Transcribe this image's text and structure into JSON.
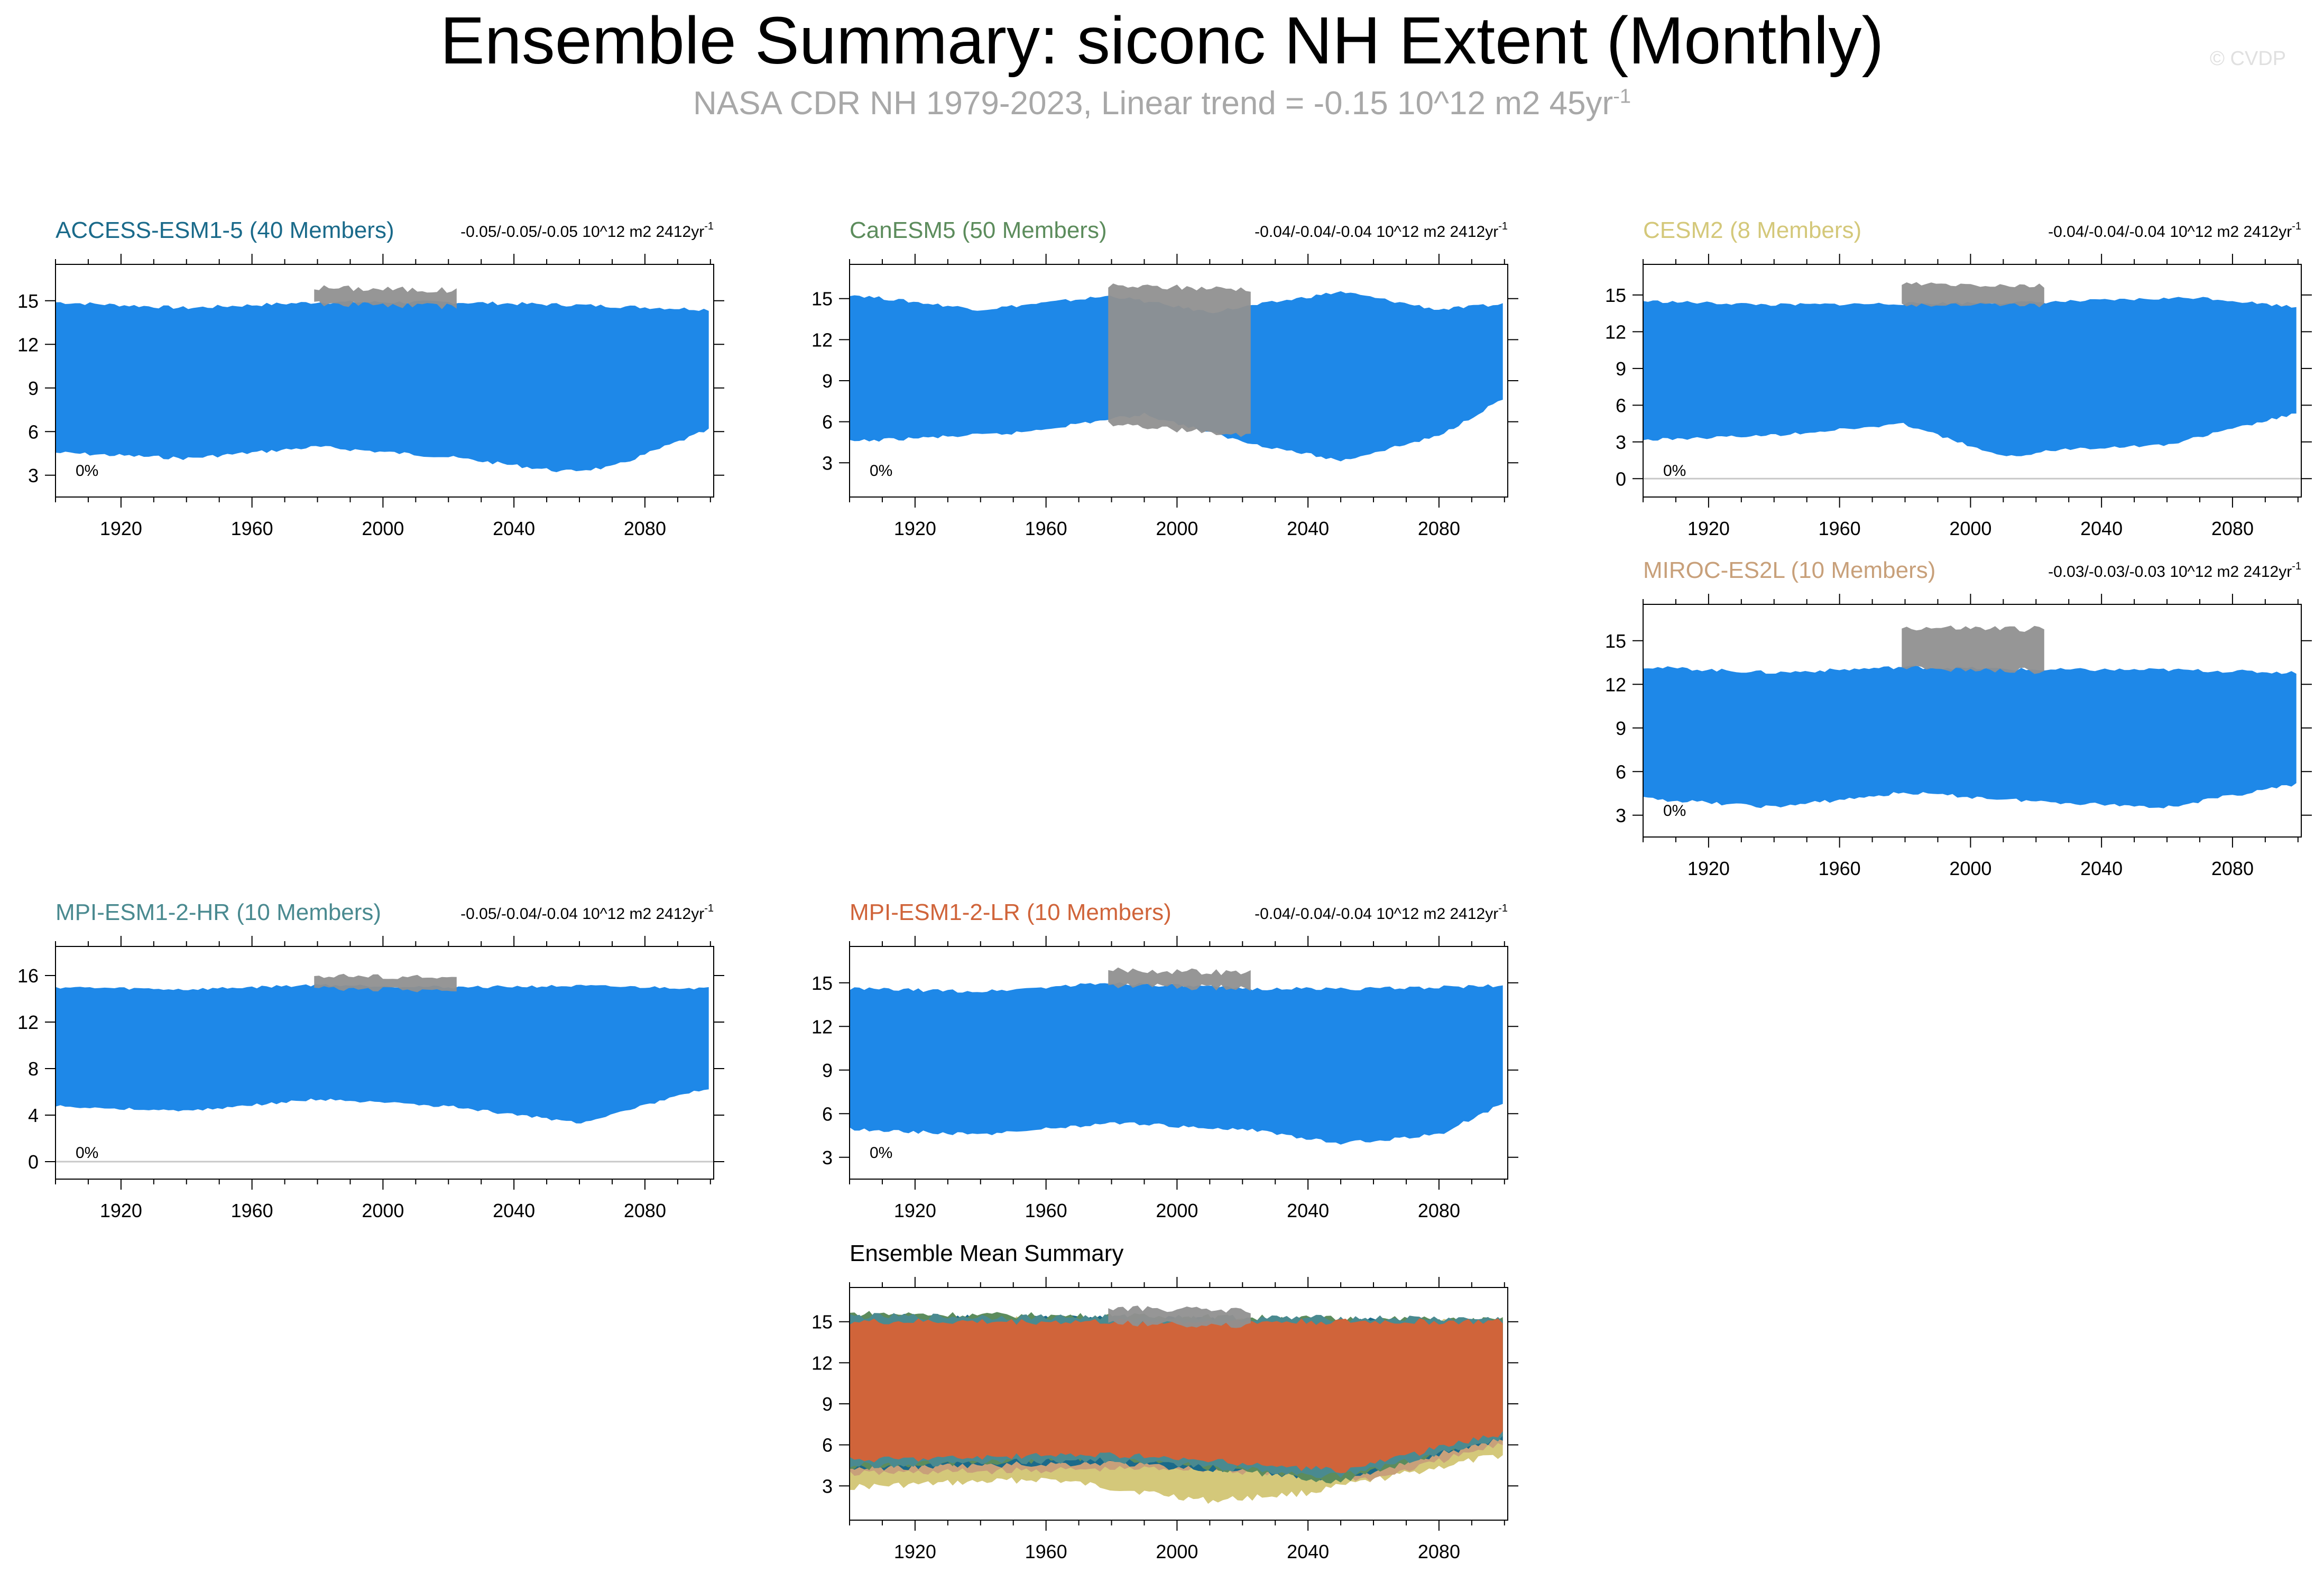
{
  "header": {
    "title": "Ensemble Summary: siconc NH Extent (Monthly)",
    "subtitle_main": "NASA CDR NH 1979-2023, Linear trend = -0.15 10^12 m2 45yr",
    "subtitle_sup": "-1",
    "watermark": "© CVDP"
  },
  "colors": {
    "model_band": "#1e88e8",
    "observations": "#909090",
    "ACCESS-ESM1-5": "#1a6a8a",
    "CanESM5": "#5c8c5c",
    "CESM2": "#d4c87a",
    "MIROC-ES2L": "#c8a07a",
    "MPI-ESM1-2-HR": "#4a8a90",
    "MPI-ESM1-2-LR": "#d0643a"
  },
  "chart_data": [
    {
      "type": "area",
      "title": "ACCESS-ESM1-5 (40 Members)",
      "title_color": "#1a6a8a",
      "trend_text": "-0.05/-0.05/-0.05 10^12 m2 2412yr",
      "trend_sup": "-1",
      "percent_label": "0%",
      "xlim": [
        1900,
        2101
      ],
      "ylim": [
        1.5,
        17.5
      ],
      "xticks": [
        1920,
        1960,
        2000,
        2040,
        2080
      ],
      "yticks": [
        3,
        6,
        9,
        12,
        15
      ],
      "model_upper": [
        [
          1900,
          14.9
        ],
        [
          1940,
          14.5
        ],
        [
          1980,
          14.9
        ],
        [
          2020,
          14.9
        ],
        [
          2060,
          14.7
        ],
        [
          2100,
          14.4
        ]
      ],
      "model_lower": [
        [
          1900,
          4.6
        ],
        [
          1940,
          4.2
        ],
        [
          1980,
          5.0
        ],
        [
          2020,
          4.3
        ],
        [
          2055,
          3.3
        ],
        [
          2070,
          3.6
        ],
        [
          2100,
          6.2
        ]
      ],
      "obs_upper": [
        [
          1979,
          15.9
        ],
        [
          2023,
          15.7
        ]
      ],
      "obs_lower": [
        [
          1979,
          14.9
        ],
        [
          2023,
          14.7
        ]
      ]
    },
    {
      "type": "area",
      "title": "CanESM5 (50 Members)",
      "title_color": "#5c8c5c",
      "trend_text": "-0.04/-0.04/-0.04 10^12 m2 2412yr",
      "trend_sup": "-1",
      "percent_label": "0%",
      "xlim": [
        1900,
        2101
      ],
      "ylim": [
        0.5,
        17.5
      ],
      "xticks": [
        1920,
        1960,
        2000,
        2040,
        2080
      ],
      "yticks": [
        3,
        6,
        9,
        12,
        15
      ],
      "model_upper": [
        [
          1900,
          15.3
        ],
        [
          1940,
          14.2
        ],
        [
          1980,
          15.2
        ],
        [
          2010,
          14.0
        ],
        [
          2050,
          15.5
        ],
        [
          2080,
          14.2
        ],
        [
          2100,
          14.6
        ]
      ],
      "model_lower": [
        [
          1900,
          4.6
        ],
        [
          1950,
          5.2
        ],
        [
          1990,
          6.6
        ],
        [
          2020,
          4.6
        ],
        [
          2050,
          3.2
        ],
        [
          2080,
          5.0
        ],
        [
          2100,
          7.8
        ]
      ],
      "obs_upper": [
        [
          1979,
          15.9
        ],
        [
          2023,
          15.7
        ]
      ],
      "obs_lower": [
        [
          1979,
          6.0
        ],
        [
          2023,
          5.0
        ]
      ]
    },
    {
      "type": "area",
      "title": "CESM2 (8 Members)",
      "title_color": "#d4c87a",
      "trend_text": "-0.04/-0.04/-0.04 10^12 m2 2412yr",
      "trend_sup": "-1",
      "percent_label": "0%",
      "xlim": [
        1900,
        2101
      ],
      "ylim": [
        -1.5,
        17.5
      ],
      "xticks": [
        1920,
        1960,
        2000,
        2040,
        2080
      ],
      "yticks": [
        0,
        3,
        6,
        9,
        12,
        15
      ],
      "model_upper": [
        [
          1900,
          14.5
        ],
        [
          1940,
          14.2
        ],
        [
          1980,
          14.3
        ],
        [
          2020,
          14.4
        ],
        [
          2070,
          14.8
        ],
        [
          2100,
          14.0
        ]
      ],
      "model_lower": [
        [
          1900,
          3.2
        ],
        [
          1940,
          3.6
        ],
        [
          1980,
          4.5
        ],
        [
          2010,
          1.8
        ],
        [
          2030,
          2.5
        ],
        [
          2060,
          2.8
        ],
        [
          2100,
          5.4
        ]
      ],
      "obs_upper": [
        [
          1979,
          15.9
        ],
        [
          2023,
          15.7
        ]
      ],
      "obs_lower": [
        [
          1979,
          14.3
        ],
        [
          2023,
          14.3
        ]
      ]
    },
    {
      "type": "area",
      "title": "MIROC-ES2L (10 Members)",
      "title_color": "#c8a07a",
      "trend_text": "-0.03/-0.03/-0.03 10^12 m2 2412yr",
      "trend_sup": "-1",
      "percent_label": "0%",
      "xlim": [
        1900,
        2101
      ],
      "ylim": [
        1.5,
        17.5
      ],
      "xticks": [
        1920,
        1960,
        2000,
        2040,
        2080
      ],
      "yticks": [
        3,
        6,
        9,
        12,
        15
      ],
      "model_upper": [
        [
          1900,
          13.2
        ],
        [
          1940,
          12.8
        ],
        [
          1980,
          13.2
        ],
        [
          2020,
          13.0
        ],
        [
          2060,
          13.0
        ],
        [
          2100,
          12.8
        ]
      ],
      "model_lower": [
        [
          1900,
          4.2
        ],
        [
          1940,
          3.6
        ],
        [
          1980,
          4.6
        ],
        [
          2020,
          4.0
        ],
        [
          2060,
          3.6
        ],
        [
          2100,
          5.2
        ]
      ],
      "obs_upper": [
        [
          1979,
          15.9
        ],
        [
          2023,
          15.8
        ]
      ],
      "obs_lower": [
        [
          1979,
          13.2
        ],
        [
          2023,
          13.0
        ]
      ]
    },
    {
      "type": "area",
      "title": "MPI-ESM1-2-HR (10 Members)",
      "title_color": "#4a8a90",
      "trend_text": "-0.05/-0.04/-0.04 10^12 m2 2412yr",
      "trend_sup": "-1",
      "percent_label": "0%",
      "xlim": [
        1900,
        2101
      ],
      "ylim": [
        -1.5,
        18.5
      ],
      "xticks": [
        1920,
        1960,
        2000,
        2040,
        2080
      ],
      "yticks": [
        0,
        4,
        8,
        12,
        16
      ],
      "model_upper": [
        [
          1900,
          15.0
        ],
        [
          1940,
          14.8
        ],
        [
          1980,
          15.2
        ],
        [
          2020,
          15.0
        ],
        [
          2060,
          15.1
        ],
        [
          2100,
          14.9
        ]
      ],
      "model_lower": [
        [
          1900,
          4.8
        ],
        [
          1940,
          4.4
        ],
        [
          1980,
          5.4
        ],
        [
          2020,
          4.8
        ],
        [
          2060,
          3.4
        ],
        [
          2100,
          6.4
        ]
      ],
      "obs_upper": [
        [
          1979,
          16.0
        ],
        [
          2023,
          15.8
        ]
      ],
      "obs_lower": [
        [
          1979,
          15.0
        ],
        [
          2023,
          14.8
        ]
      ]
    },
    {
      "type": "area",
      "title": "MPI-ESM1-2-LR (10 Members)",
      "title_color": "#d0643a",
      "trend_text": "-0.04/-0.04/-0.04 10^12 m2 2412yr",
      "trend_sup": "-1",
      "percent_label": "0%",
      "xlim": [
        1900,
        2101
      ],
      "ylim": [
        1.5,
        17.5
      ],
      "xticks": [
        1920,
        1960,
        2000,
        2040,
        2080
      ],
      "yticks": [
        3,
        6,
        9,
        12,
        15
      ],
      "model_upper": [
        [
          1900,
          14.6
        ],
        [
          1940,
          14.4
        ],
        [
          1980,
          15.0
        ],
        [
          2020,
          14.6
        ],
        [
          2060,
          14.6
        ],
        [
          2100,
          14.8
        ]
      ],
      "model_lower": [
        [
          1900,
          5.0
        ],
        [
          1940,
          4.6
        ],
        [
          1980,
          5.4
        ],
        [
          2020,
          5.0
        ],
        [
          2050,
          4.0
        ],
        [
          2080,
          4.6
        ],
        [
          2100,
          6.8
        ]
      ],
      "obs_upper": [
        [
          1979,
          15.9
        ],
        [
          2023,
          15.7
        ]
      ],
      "obs_lower": [
        [
          1979,
          14.9
        ],
        [
          2023,
          14.7
        ]
      ]
    },
    {
      "type": "area",
      "title": "Ensemble Mean Summary",
      "title_color": "#000000",
      "xlim": [
        1900,
        2101
      ],
      "ylim": [
        0.5,
        17.5
      ],
      "xticks": [
        1920,
        1960,
        2000,
        2040,
        2080
      ],
      "yticks": [
        3,
        6,
        9,
        12,
        15
      ],
      "series": [
        {
          "color_key": "CESM2",
          "upper": [
            [
              1900,
              15.2
            ],
            [
              2100,
              15.0
            ]
          ],
          "lower": [
            [
              1900,
              3.0
            ],
            [
              1960,
              3.6
            ],
            [
              2010,
              2.0
            ],
            [
              2040,
              2.6
            ],
            [
              2100,
              5.4
            ]
          ]
        },
        {
          "color_key": "MIROC-ES2L",
          "upper": [
            [
              1900,
              15.0
            ],
            [
              2100,
              14.8
            ]
          ],
          "lower": [
            [
              1900,
              4.0
            ],
            [
              2000,
              4.4
            ],
            [
              2060,
              3.6
            ],
            [
              2100,
              6.2
            ]
          ]
        },
        {
          "color_key": "ACCESS-ESM1-5",
          "upper": [
            [
              1900,
              15.4
            ],
            [
              2100,
              15.0
            ]
          ],
          "lower": [
            [
              1900,
              4.4
            ],
            [
              1980,
              4.8
            ],
            [
              2050,
              3.6
            ],
            [
              2100,
              6.6
            ]
          ]
        },
        {
          "color_key": "CanESM5",
          "upper": [
            [
              1900,
              15.6
            ],
            [
              2100,
              15.1
            ]
          ],
          "lower": [
            [
              1900,
              4.4
            ],
            [
              1980,
              5.2
            ],
            [
              2050,
              3.4
            ],
            [
              2100,
              7.0
            ]
          ]
        },
        {
          "color_key": "MPI-ESM1-2-HR",
          "upper": [
            [
              1900,
              15.4
            ],
            [
              2100,
              15.2
            ]
          ],
          "lower": [
            [
              1900,
              4.6
            ],
            [
              1980,
              5.0
            ],
            [
              2050,
              3.8
            ],
            [
              2100,
              6.6
            ]
          ]
        },
        {
          "color_key": "MPI-ESM1-2-LR",
          "upper": [
            [
              1900,
              15.0
            ],
            [
              2100,
              15.0
            ]
          ],
          "lower": [
            [
              1900,
              5.0
            ],
            [
              1980,
              5.4
            ],
            [
              2050,
              4.2
            ],
            [
              2100,
              7.0
            ]
          ]
        }
      ],
      "obs_upper": [
        [
          1979,
          16.0
        ],
        [
          2023,
          15.8
        ]
      ],
      "obs_lower": [
        [
          1979,
          15.0
        ],
        [
          2023,
          14.8
        ]
      ]
    }
  ]
}
